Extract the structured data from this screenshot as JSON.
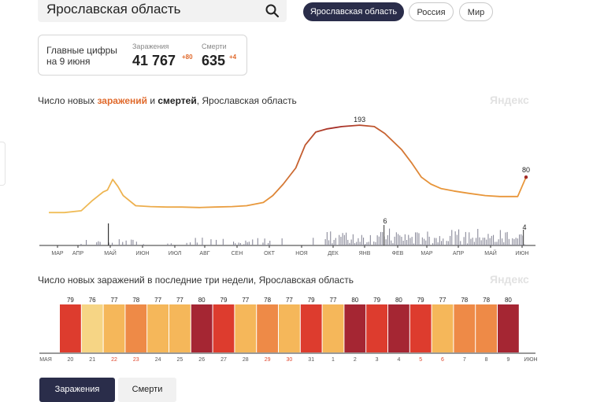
{
  "search": {
    "query": "Ярославская область"
  },
  "region_tabs": [
    {
      "label": "Ярославская область",
      "active": true
    },
    {
      "label": "Россия",
      "active": false
    },
    {
      "label": "Мир",
      "active": false
    }
  ],
  "stats": {
    "title_line1": "Главные цифры",
    "title_line2": "на 9 июня",
    "infections_label": "Заражения",
    "infections_value": "41 767",
    "infections_delta": "+80",
    "deaths_label": "Смерти",
    "deaths_value": "635",
    "deaths_delta": "+4"
  },
  "chart1_title": {
    "part1": "Число новых ",
    "infections": "заражений",
    "part2": " и ",
    "deaths": "смертей",
    "part3": ", Ярославская область"
  },
  "chart2_title": "Число новых заражений в последние три недели, Ярославская область",
  "watermark": "Яндекс",
  "bottom_tabs": {
    "infections": "Заражения",
    "deaths": "Смерти"
  },
  "colors": {
    "dark": "#2a2d4a",
    "accent_orange": "#e06a2c",
    "line_start": "#f0c05a",
    "line_mid": "#e8963a",
    "line_end": "#a32a26",
    "bar_gray": "#8a8a9a"
  },
  "chart_data": [
    {
      "type": "line",
      "series": [
        {
          "name": "заражения",
          "x": [
            "03-10",
            "03-25",
            "04-10",
            "04-20",
            "05-01",
            "05-05",
            "05-10",
            "05-15",
            "05-20",
            "06-01",
            "06-15",
            "07-01",
            "07-15",
            "08-01",
            "08-15",
            "09-01",
            "09-15",
            "10-01",
            "10-10",
            "10-20",
            "11-01",
            "11-10",
            "11-20",
            "12-01",
            "12-15",
            "01-01",
            "01-15",
            "01-25",
            "02-10",
            "02-20",
            "03-01",
            "03-10",
            "03-20",
            "04-01",
            "04-15",
            "05-01",
            "05-15",
            "06-01",
            "06-09"
          ],
          "values": [
            3,
            3,
            7,
            28,
            48,
            52,
            75,
            60,
            40,
            18,
            16,
            15,
            15,
            14,
            15,
            16,
            18,
            25,
            40,
            65,
            100,
            150,
            178,
            185,
            190,
            193,
            190,
            175,
            140,
            110,
            80,
            65,
            55,
            50,
            45,
            40,
            38,
            38,
            80
          ],
          "peak_label": "193",
          "last_label": "80"
        },
        {
          "name": "смерти",
          "peak_label": "6",
          "last_label": "4"
        }
      ],
      "x_ticks": [
        "МАР",
        "АПР",
        "МАЙ",
        "ИЮН",
        "ИЮЛ",
        "АВГ",
        "СЕН",
        "ОКТ",
        "НОЯ",
        "ДЕК",
        "ЯНВ",
        "ФЕВ",
        "МАР",
        "АПР",
        "МАЙ",
        "ИЮН"
      ],
      "ylim": [
        0,
        200
      ]
    },
    {
      "type": "heatmap",
      "categories": [
        "20",
        "21",
        "22",
        "23",
        "24",
        "25",
        "26",
        "27",
        "28",
        "29",
        "30",
        "31",
        "1",
        "2",
        "3",
        "4",
        "5",
        "6",
        "7",
        "8",
        "9"
      ],
      "values": [
        79,
        76,
        77,
        78,
        77,
        77,
        80,
        79,
        77,
        78,
        77,
        79,
        77,
        80,
        79,
        80,
        79,
        77,
        78,
        78,
        80
      ],
      "weekend_days": [
        "22",
        "23",
        "29",
        "30",
        "5",
        "6"
      ],
      "left_label": "МАЯ",
      "right_label": "ИЮН"
    }
  ]
}
